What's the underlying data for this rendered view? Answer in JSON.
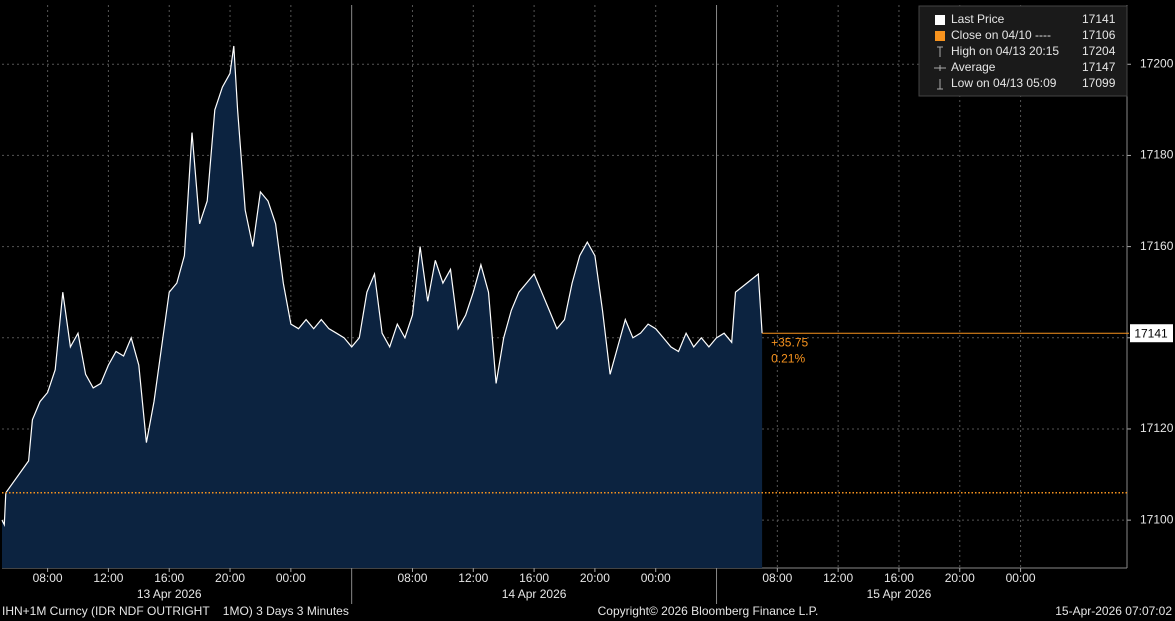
{
  "chart_data": {
    "type": "area",
    "x": [
      "2026-04-13 05:00",
      "2026-04-13 05:09",
      "2026-04-13 05:15",
      "2026-04-13 06:45",
      "2026-04-13 07:00",
      "2026-04-13 07:30",
      "2026-04-13 08:00",
      "2026-04-13 08:30",
      "2026-04-13 09:00",
      "2026-04-13 09:30",
      "2026-04-13 10:00",
      "2026-04-13 10:30",
      "2026-04-13 11:00",
      "2026-04-13 11:30",
      "2026-04-13 12:00",
      "2026-04-13 12:30",
      "2026-04-13 13:00",
      "2026-04-13 13:30",
      "2026-04-13 14:00",
      "2026-04-13 14:30",
      "2026-04-13 15:00",
      "2026-04-13 15:30",
      "2026-04-13 16:00",
      "2026-04-13 16:30",
      "2026-04-13 17:00",
      "2026-04-13 17:30",
      "2026-04-13 18:00",
      "2026-04-13 18:30",
      "2026-04-13 19:00",
      "2026-04-13 19:30",
      "2026-04-13 20:00",
      "2026-04-13 20:15",
      "2026-04-13 20:30",
      "2026-04-13 21:00",
      "2026-04-13 21:30",
      "2026-04-13 22:00",
      "2026-04-13 22:30",
      "2026-04-13 23:00",
      "2026-04-13 23:30",
      "2026-04-14 00:00",
      "2026-04-14 00:30",
      "2026-04-14 01:00",
      "2026-04-14 01:30",
      "2026-04-14 02:00",
      "2026-04-14 02:30",
      "2026-04-14 03:00",
      "2026-04-14 03:30",
      "2026-04-14 04:00",
      "2026-04-14 04:30",
      "2026-04-14 05:00",
      "2026-04-14 05:30",
      "2026-04-14 06:00",
      "2026-04-14 06:30",
      "2026-04-14 07:00",
      "2026-04-14 07:30",
      "2026-04-14 08:00",
      "2026-04-14 08:30",
      "2026-04-14 09:00",
      "2026-04-14 09:30",
      "2026-04-14 10:00",
      "2026-04-14 10:30",
      "2026-04-14 11:00",
      "2026-04-14 11:30",
      "2026-04-14 12:00",
      "2026-04-14 12:30",
      "2026-04-14 13:00",
      "2026-04-14 13:30",
      "2026-04-14 14:00",
      "2026-04-14 14:30",
      "2026-04-14 15:00",
      "2026-04-14 15:30",
      "2026-04-14 16:00",
      "2026-04-14 16:30",
      "2026-04-14 17:00",
      "2026-04-14 17:30",
      "2026-04-14 18:00",
      "2026-04-14 18:30",
      "2026-04-14 19:00",
      "2026-04-14 19:30",
      "2026-04-14 20:00",
      "2026-04-14 20:30",
      "2026-04-14 21:00",
      "2026-04-14 21:30",
      "2026-04-14 22:00",
      "2026-04-14 22:30",
      "2026-04-14 23:00",
      "2026-04-14 23:30",
      "2026-04-15 00:00",
      "2026-04-15 00:30",
      "2026-04-15 01:00",
      "2026-04-15 01:30",
      "2026-04-15 02:00",
      "2026-04-15 02:30",
      "2026-04-15 03:00",
      "2026-04-15 03:30",
      "2026-04-15 04:00",
      "2026-04-15 04:30",
      "2026-04-15 05:00",
      "2026-04-15 05:15",
      "2026-04-15 06:00",
      "2026-04-15 06:45",
      "2026-04-15 07:00"
    ],
    "series": [
      {
        "name": "Last Price",
        "color": "#ffffff",
        "fill": "#0c2340",
        "values": [
          17100,
          17099,
          17106,
          17113,
          17122,
          17126,
          17128,
          17133,
          17150,
          17138,
          17141,
          17132,
          17129,
          17130,
          17134,
          17137,
          17136,
          17140,
          17134,
          17117,
          17126,
          17138,
          17150,
          17152,
          17158,
          17185,
          17165,
          17170,
          17190,
          17195,
          17198,
          17204,
          17190,
          17168,
          17160,
          17172,
          17170,
          17165,
          17152,
          17143,
          17142,
          17144,
          17142,
          17144,
          17142,
          17141,
          17140,
          17138,
          17140,
          17150,
          17154,
          17141,
          17138,
          17143,
          17140,
          17145,
          17160,
          17148,
          17157,
          17152,
          17155,
          17142,
          17145,
          17150,
          17156,
          17150,
          17130,
          17140,
          17146,
          17150,
          17152,
          17154,
          17150,
          17146,
          17142,
          17144,
          17152,
          17158,
          17161,
          17158,
          17146,
          17132,
          17138,
          17144,
          17140,
          17141,
          17143,
          17142,
          17140,
          17138,
          17137,
          17141,
          17138,
          17140,
          17138,
          17140,
          17141,
          17139,
          17150,
          17152,
          17154,
          17141
        ]
      }
    ],
    "xlim": [
      "2026-04-13 05:00",
      "2026-04-16 07:00"
    ],
    "ylim": [
      17089.5,
      17213
    ],
    "yticks": [
      17100,
      17120,
      17140,
      17160,
      17180,
      17200
    ],
    "xticks": [
      {
        "value": "2026-04-13 08:00",
        "label": "08:00"
      },
      {
        "value": "2026-04-13 12:00",
        "label": "12:00"
      },
      {
        "value": "2026-04-13 16:00",
        "label": "16:00"
      },
      {
        "value": "2026-04-13 20:00",
        "label": "20:00"
      },
      {
        "value": "2026-04-14 00:00",
        "label": "00:00"
      },
      {
        "value": "2026-04-14 08:00",
        "label": "08:00"
      },
      {
        "value": "2026-04-14 12:00",
        "label": "12:00"
      },
      {
        "value": "2026-04-14 16:00",
        "label": "16:00"
      },
      {
        "value": "2026-04-14 20:00",
        "label": "20:00"
      },
      {
        "value": "2026-04-15 00:00",
        "label": "00:00"
      },
      {
        "value": "2026-04-15 08:00",
        "label": "08:00"
      },
      {
        "value": "2026-04-15 12:00",
        "label": "12:00"
      },
      {
        "value": "2026-04-15 16:00",
        "label": "16:00"
      },
      {
        "value": "2026-04-15 20:00",
        "label": "20:00"
      },
      {
        "value": "2026-04-16 00:00",
        "label": "00:00"
      }
    ],
    "date_labels": [
      {
        "value": "2026-04-13 16:00",
        "label": "13 Apr 2026"
      },
      {
        "value": "2026-04-14 16:00",
        "label": "14 Apr 2026"
      },
      {
        "value": "2026-04-15 16:00",
        "label": "15 Apr 2026"
      }
    ],
    "day_breaks": [
      "2026-04-14 04:00",
      "2026-04-15 04:00"
    ],
    "grid": true,
    "accent": "#f7931e",
    "change": {
      "value": 35.75,
      "label": "+35.75"
    },
    "change_pct": {
      "value": 0.21,
      "label": "0.21%"
    },
    "legend": [
      {
        "label": "Last Price",
        "value": 17141,
        "color": "#ffffff"
      },
      {
        "label": "Close on 04/10 ----",
        "value": 17106,
        "color": "#f7931e"
      },
      {
        "label": "High on 04/13 20:15",
        "value": 17204
      },
      {
        "label": "Average",
        "value": 17147
      },
      {
        "label": "Low on 04/13 05:09",
        "value": 17099
      }
    ]
  },
  "footer": {
    "left": "IHN+1M Curncy (IDR NDF OUTRIGHT    1MO) 3 Days 3 Minutes",
    "center": "Copyright© 2026 Bloomberg Finance L.P.",
    "right": "15-Apr-2026 07:07:02"
  }
}
